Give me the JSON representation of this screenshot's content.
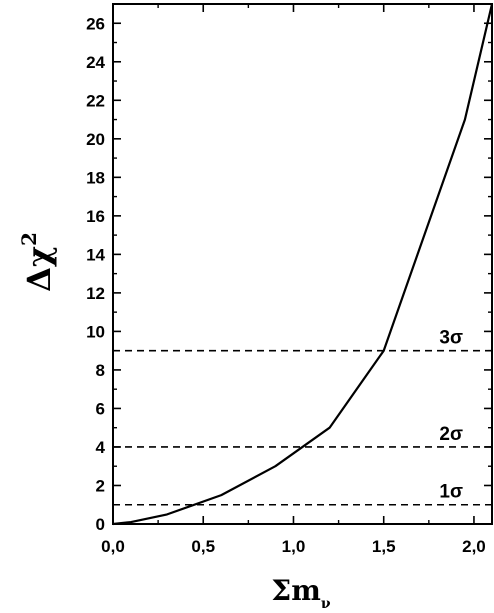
{
  "chart_data": {
    "type": "line",
    "title": "",
    "xlabel_main": "Σm",
    "xlabel_sub": "ν",
    "ylabel_main": "Δχ",
    "ylabel_sup": "2",
    "xlim": [
      0.0,
      2.1
    ],
    "ylim": [
      0,
      27
    ],
    "x_ticks": [
      0.0,
      0.5,
      1.0,
      1.5,
      2.0
    ],
    "x_tick_labels": [
      "0,0",
      "0,5",
      "1,0",
      "1,5",
      "2,0"
    ],
    "y_ticks": [
      0,
      2,
      4,
      6,
      8,
      10,
      12,
      14,
      16,
      18,
      20,
      22,
      24,
      26
    ],
    "y_tick_labels": [
      "0",
      "2",
      "4",
      "6",
      "8",
      "10",
      "12",
      "14",
      "16",
      "18",
      "20",
      "22",
      "24",
      "26"
    ],
    "grid": false,
    "series": [
      {
        "x": [
          0.0,
          0.1,
          0.3,
          0.6,
          0.9,
          1.2,
          1.5,
          1.95,
          2.1
        ],
        "y": [
          0.0,
          0.1,
          0.5,
          1.5,
          3.0,
          5.0,
          9.0,
          21.0,
          27.0
        ]
      }
    ],
    "reference_lines": [
      {
        "y": 1,
        "label": "1σ"
      },
      {
        "y": 4,
        "label": "2σ"
      },
      {
        "y": 9,
        "label": "3σ"
      }
    ]
  },
  "colors": {
    "line": "#000000",
    "background": "#ffffff"
  }
}
